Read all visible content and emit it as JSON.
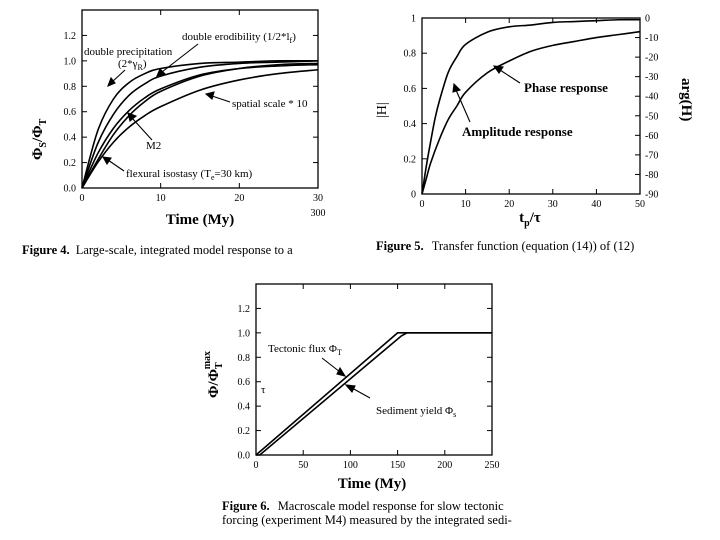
{
  "fig4": {
    "y_label_main": "Φ",
    "y_label_sub1": "S",
    "y_label_sep": "/Φ",
    "y_label_sub2": "T",
    "x_label": "Time (My)",
    "x_ticks": [
      "0",
      "10",
      "20",
      "30"
    ],
    "x_extra_tick": "300",
    "y_ticks": [
      "0.0",
      "0.2",
      "0.4",
      "0.6",
      "0.8",
      "1.0",
      "1.2"
    ],
    "annotations": {
      "double_precip_1": "double precipitation",
      "double_precip_2": "(2*γ",
      "double_precip_2_sub": "R",
      "double_precip_2_end": ")",
      "double_erod": "double erodibility (1/2*l",
      "double_erod_sub": "f",
      "double_erod_end": ")",
      "spatial": "spatial scale * 10",
      "m2": "M2",
      "flexural": "flexural isostasy (T",
      "flexural_sub": "e",
      "flexural_end": "=30 km)"
    },
    "caption_bold": "Figure 4.",
    "caption_text": "Large-scale, integrated model response to a"
  },
  "fig5": {
    "y_left_label": "|H|",
    "y_right_label": "arg(H)",
    "x_label_main": "t",
    "x_label_sub": "p",
    "x_label_end": "/τ",
    "x_ticks": [
      "0",
      "10",
      "20",
      "30",
      "40",
      "50"
    ],
    "y_left_ticks": [
      "0",
      "0.2",
      "0.4",
      "0.6",
      "0.8",
      "1"
    ],
    "y_right_ticks": [
      "0",
      "-10",
      "-20",
      "-30",
      "-40",
      "-50",
      "-60",
      "-70",
      "-80",
      "-90"
    ],
    "annotations": {
      "phase": "Phase response",
      "amplitude": "Amplitude response"
    },
    "caption_bold": "Figure 5.",
    "caption_text": "Transfer function (equation (14)) of (12)"
  },
  "fig6": {
    "y_label_main": "Φ/Φ",
    "y_label_sub": "T",
    "y_label_sup": "max",
    "x_label": "Time (My)",
    "x_ticks": [
      "0",
      "50",
      "100",
      "150",
      "200",
      "250"
    ],
    "y_ticks": [
      "0.0",
      "0.2",
      "0.4",
      "0.6",
      "0.8",
      "1.0",
      "1.2"
    ],
    "tau_mark": "τ",
    "annotations": {
      "tectonic": "Tectonic flux Φ",
      "tectonic_sub": "T",
      "sediment": "Sediment yield Φ",
      "sediment_sub": "s"
    },
    "caption_bold": "Figure 6.",
    "caption_line1": "Macroscale model response for slow tectonic",
    "caption_line2": "forcing (experiment M4) measured by the integrated sedi-"
  },
  "chart_data": [
    {
      "type": "line",
      "xlabel": "Time (My)",
      "ylabel": "ΦS/ΦT",
      "xlim": [
        0,
        30
      ],
      "ylim": [
        0,
        1.4
      ],
      "series": [
        {
          "name": "double precipitation (2*γR)",
          "x": [
            0,
            2,
            4,
            6,
            8,
            10,
            15,
            20,
            25,
            30
          ],
          "y": [
            0,
            0.45,
            0.7,
            0.83,
            0.9,
            0.94,
            0.98,
            0.99,
            1.0,
            1.0
          ]
        },
        {
          "name": "double erodibility (1/2*lf)",
          "x": [
            0,
            2,
            4,
            6,
            8,
            10,
            15,
            20,
            25,
            30
          ],
          "y": [
            0,
            0.35,
            0.58,
            0.73,
            0.82,
            0.88,
            0.95,
            0.98,
            0.99,
            1.0
          ]
        },
        {
          "name": "M2",
          "x": [
            0,
            2,
            4,
            6,
            8,
            10,
            15,
            20,
            25,
            30
          ],
          "y": [
            0,
            0.27,
            0.47,
            0.61,
            0.71,
            0.78,
            0.89,
            0.94,
            0.96,
            0.97
          ]
        },
        {
          "name": "spatial scale * 10",
          "x": [
            0,
            2,
            4,
            6,
            8,
            10,
            15,
            20,
            25,
            30
          ],
          "y": [
            0,
            0.2,
            0.36,
            0.48,
            0.57,
            0.64,
            0.77,
            0.85,
            0.9,
            0.93
          ]
        },
        {
          "name": "flexural isostasy (Te=30 km)",
          "x": [
            0,
            2,
            4,
            6,
            8,
            10,
            15,
            20,
            25,
            30
          ],
          "y": [
            0,
            0.22,
            0.42,
            0.57,
            0.68,
            0.76,
            0.88,
            0.94,
            0.97,
            0.98
          ]
        }
      ]
    },
    {
      "type": "line",
      "xlabel": "tp/τ",
      "ylabel": "|H|",
      "y2label": "arg(H)",
      "xlim": [
        0,
        50
      ],
      "ylim": [
        0,
        1
      ],
      "y2lim": [
        -90,
        0
      ],
      "series": [
        {
          "name": "Amplitude response",
          "axis": "left",
          "x": [
            0,
            1,
            2,
            3,
            4,
            6,
            8,
            10,
            15,
            20,
            25,
            30,
            35,
            40,
            45,
            50
          ],
          "y": [
            0,
            0.16,
            0.3,
            0.43,
            0.53,
            0.69,
            0.78,
            0.85,
            0.92,
            0.95,
            0.96,
            0.975,
            0.98,
            0.985,
            0.99,
            0.99
          ]
        },
        {
          "name": "Phase response",
          "axis": "right",
          "x": [
            0,
            1,
            2,
            4,
            6,
            8,
            10,
            15,
            20,
            25,
            30,
            35,
            40,
            45,
            50
          ],
          "y": [
            -90,
            -82,
            -74,
            -62,
            -52,
            -45,
            -38,
            -28,
            -22,
            -17,
            -14,
            -12,
            -10,
            -8.5,
            -7
          ]
        }
      ]
    },
    {
      "type": "line",
      "xlabel": "Time (My)",
      "ylabel": "Φ/ΦTmax",
      "xlim": [
        0,
        250
      ],
      "ylim": [
        0,
        1.4
      ],
      "series": [
        {
          "name": "Tectonic flux ΦT",
          "x": [
            0,
            150,
            250
          ],
          "y": [
            0,
            1.0,
            1.0
          ]
        },
        {
          "name": "Sediment yield Φs",
          "x": [
            0,
            4,
            154,
            160,
            250
          ],
          "y": [
            0,
            0,
            0.975,
            1.0,
            1.0
          ]
        }
      ]
    }
  ]
}
